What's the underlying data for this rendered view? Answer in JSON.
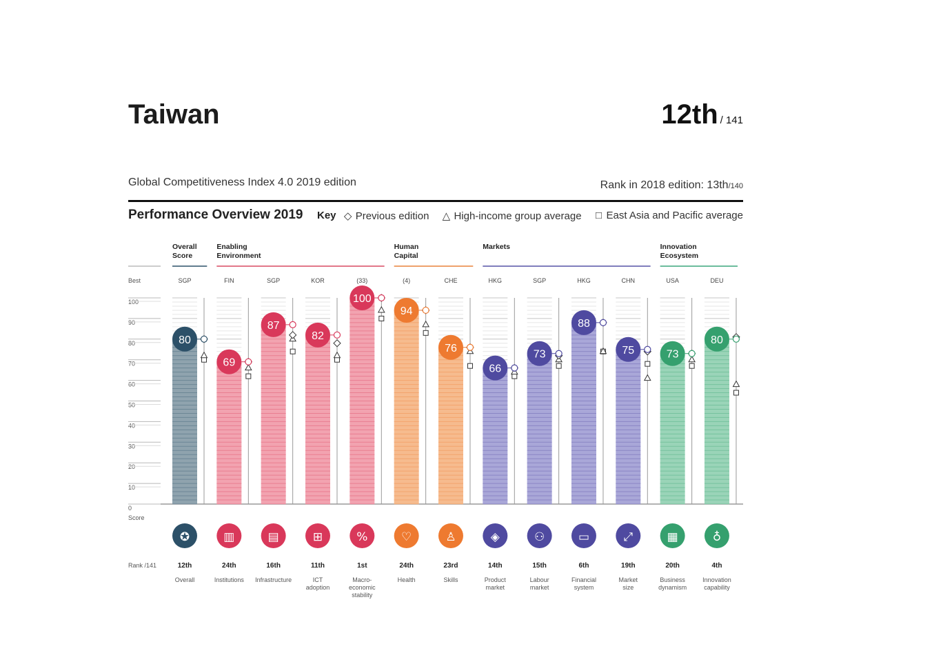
{
  "header": {
    "country": "Taiwan",
    "rank": "12th",
    "rank_total": "/ 141",
    "edition": "Global Competitiveness Index 4.0 2019 edition",
    "prev_rank_label": "Rank in 2018 edition: 13th",
    "prev_rank_total": "/140"
  },
  "overview_title": "Performance Overview 2019",
  "key_label": "Key",
  "legend": [
    {
      "symbol": "diamond",
      "glyph": "◇",
      "label": "Previous edition"
    },
    {
      "symbol": "triangle",
      "glyph": "△",
      "label": "High-income group average"
    },
    {
      "symbol": "square",
      "glyph": "□",
      "label": "East Asia and Pacific average"
    }
  ],
  "chart_data": {
    "type": "bar",
    "ylim": [
      0,
      100
    ],
    "yticks": [
      "100",
      "90",
      "80",
      "70",
      "60",
      "50",
      "40",
      "30",
      "20",
      "10",
      "0"
    ],
    "best_label": "Best",
    "score_label": "Score",
    "rank_label": "Rank /141",
    "groups": [
      {
        "name": "Overall\nScore",
        "color": "#2c5068",
        "span": [
          0,
          0
        ]
      },
      {
        "name": "Enabling\nEnvironment",
        "color": "#d94a62",
        "span": [
          1,
          4
        ]
      },
      {
        "name": "Human\nCapital",
        "color": "#e8823a",
        "span": [
          5,
          6
        ]
      },
      {
        "name": "Markets",
        "color": "#5552a5",
        "span": [
          7,
          10
        ]
      },
      {
        "name": "Innovation\nEcosystem",
        "color": "#3aa57c",
        "span": [
          11,
          12
        ]
      }
    ],
    "pillars": [
      {
        "best": "SGP",
        "score": 80,
        "prev": 80,
        "high": 72,
        "eap": 70,
        "rank": "12th",
        "label": "Overall",
        "color": "#2c5068",
        "bar": "#8fa3ae",
        "icon": "medal-icon",
        "glyph": "✪"
      },
      {
        "best": "FIN",
        "score": 69,
        "prev": 69,
        "high": 66,
        "eap": 62,
        "rank": "24th",
        "label": "Institutions",
        "color": "#d9385a",
        "bar": "#f2a3b0",
        "icon": "institution-icon",
        "glyph": "▥"
      },
      {
        "best": "SGP",
        "score": 87,
        "prev": 82,
        "high": 80,
        "eap": 74,
        "rank": "16th",
        "label": "Infrastructure",
        "color": "#d9385a",
        "bar": "#f2a3b0",
        "icon": "train-icon",
        "glyph": "▤"
      },
      {
        "best": "KOR",
        "score": 82,
        "prev": 78,
        "high": 72,
        "eap": 70,
        "rank": "11th",
        "label": "ICT\nadoption",
        "color": "#d9385a",
        "bar": "#f2a3b0",
        "icon": "chip-icon",
        "glyph": "⊞"
      },
      {
        "best": "(33)",
        "score": 100,
        "prev": 100,
        "high": 94,
        "eap": 90,
        "rank": "1st",
        "label": "Macro-\neconomic\nstability",
        "color": "#d9385a",
        "bar": "#f2a3b0",
        "icon": "percent-icon",
        "glyph": "%"
      },
      {
        "best": "(4)",
        "score": 94,
        "prev": 94,
        "high": 87,
        "eap": 83,
        "rank": "24th",
        "label": "Health",
        "color": "#ee7a30",
        "bar": "#f6bb8e",
        "icon": "heart-icon",
        "glyph": "♡"
      },
      {
        "best": "CHE",
        "score": 76,
        "prev": 76,
        "high": 74,
        "eap": 67,
        "rank": "23rd",
        "label": "Skills",
        "color": "#ee7a30",
        "bar": "#f6bb8e",
        "icon": "graduate-icon",
        "glyph": "♙"
      },
      {
        "best": "HKG",
        "score": 66,
        "prev": 66,
        "high": 64,
        "eap": 62,
        "rank": "14th",
        "label": "Product\nmarket",
        "color": "#4f4aa0",
        "bar": "#a9a7d8",
        "icon": "tag-icon",
        "glyph": "◈"
      },
      {
        "best": "SGP",
        "score": 73,
        "prev": 72,
        "high": 70,
        "eap": 67,
        "rank": "15th",
        "label": "Labour\nmarket",
        "color": "#4f4aa0",
        "bar": "#a9a7d8",
        "icon": "people-icon",
        "glyph": "⚇"
      },
      {
        "best": "HKG",
        "score": 88,
        "prev": 88,
        "high": 74,
        "eap": 74,
        "rank": "6th",
        "label": "Financial\nsystem",
        "color": "#4f4aa0",
        "bar": "#a9a7d8",
        "icon": "card-icon",
        "glyph": "▭"
      },
      {
        "best": "CHN",
        "score": 75,
        "prev": 74,
        "high": 61,
        "eap": 68,
        "rank": "19th",
        "label": "Market\nsize",
        "color": "#4f4aa0",
        "bar": "#a9a7d8",
        "icon": "expand-icon",
        "glyph": "⤢"
      },
      {
        "best": "USA",
        "score": 73,
        "prev": 73,
        "high": 70,
        "eap": 67,
        "rank": "20th",
        "label": "Business\ndynamism",
        "color": "#35a06e",
        "bar": "#9ad4b8",
        "icon": "building-icon",
        "glyph": "▦"
      },
      {
        "best": "DEU",
        "score": 80,
        "prev": 81,
        "high": 58,
        "eap": 54,
        "rank": "4th",
        "label": "Innovation\ncapability",
        "color": "#35a06e",
        "bar": "#9ad4b8",
        "icon": "lightbulb-icon",
        "glyph": "♁"
      }
    ]
  }
}
